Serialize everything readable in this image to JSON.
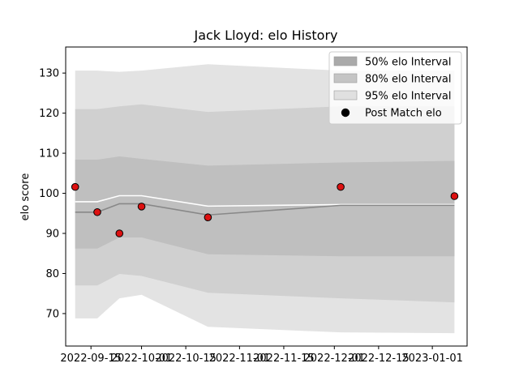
{
  "chart_data": {
    "type": "line",
    "title": "Jack Lloyd: elo History",
    "xlabel": "",
    "ylabel": "elo score",
    "x_axis": "date",
    "xlim": [
      "2022-09-07",
      "2023-01-12"
    ],
    "ylim": [
      61.9,
      136.5
    ],
    "xticks": [
      {
        "date": "2022-09-15",
        "label": "2022-09-15"
      },
      {
        "date": "2022-10-01",
        "label": "2022-10-01"
      },
      {
        "date": "2022-10-15",
        "label": "2022-10-15"
      },
      {
        "date": "2022-11-01",
        "label": "2022-11-01"
      },
      {
        "date": "2022-11-15",
        "label": "2022-11-15"
      },
      {
        "date": "2022-12-01",
        "label": "2022-12-01"
      },
      {
        "date": "2022-12-15",
        "label": "2022-12-15"
      },
      {
        "date": "2023-01-01",
        "label": "2023-01-01"
      }
    ],
    "yticks": [
      70,
      80,
      90,
      100,
      110,
      120,
      130
    ],
    "grid": false,
    "legend_position": "top-right",
    "dates": [
      "2022-09-10",
      "2022-09-17",
      "2022-09-24",
      "2022-10-01",
      "2022-10-22",
      "2022-12-03",
      "2023-01-08"
    ],
    "bands": [
      {
        "name": "95% elo Interval",
        "color": "#e3e3e3",
        "lower": [
          68.8,
          68.8,
          73.8,
          74.7,
          66.7,
          65.3,
          65.1
        ],
        "upper": [
          130.6,
          130.6,
          130.3,
          130.6,
          132.2,
          130.6,
          130.6
        ]
      },
      {
        "name": "80% elo Interval",
        "color": "#d0d0d0",
        "lower": [
          77.0,
          77.0,
          79.9,
          79.4,
          75.2,
          73.8,
          72.8
        ],
        "upper": [
          121.0,
          121.0,
          121.7,
          122.2,
          120.3,
          121.7,
          121.7
        ]
      },
      {
        "name": "50% elo Interval",
        "color": "#bfbfbf",
        "lower": [
          86.2,
          86.2,
          89.0,
          89.0,
          84.8,
          84.3,
          84.3
        ],
        "upper": [
          108.4,
          108.4,
          109.2,
          108.6,
          106.9,
          107.7,
          108.1
        ]
      }
    ],
    "series": [
      {
        "role": "mean",
        "color": "#ffffff",
        "values": [
          97.9,
          97.9,
          99.4,
          99.4,
          96.8,
          97.2,
          97.2
        ]
      },
      {
        "role": "median",
        "color": "#888888",
        "values": [
          95.3,
          95.3,
          97.4,
          97.4,
          94.6,
          97.0,
          97.0
        ]
      }
    ],
    "points": {
      "name": "Post Match elo",
      "color": "#dd1111",
      "edge_color": "#000000",
      "values": [
        101.6,
        95.3,
        90.0,
        96.7,
        94.0,
        101.6,
        99.3
      ]
    }
  }
}
